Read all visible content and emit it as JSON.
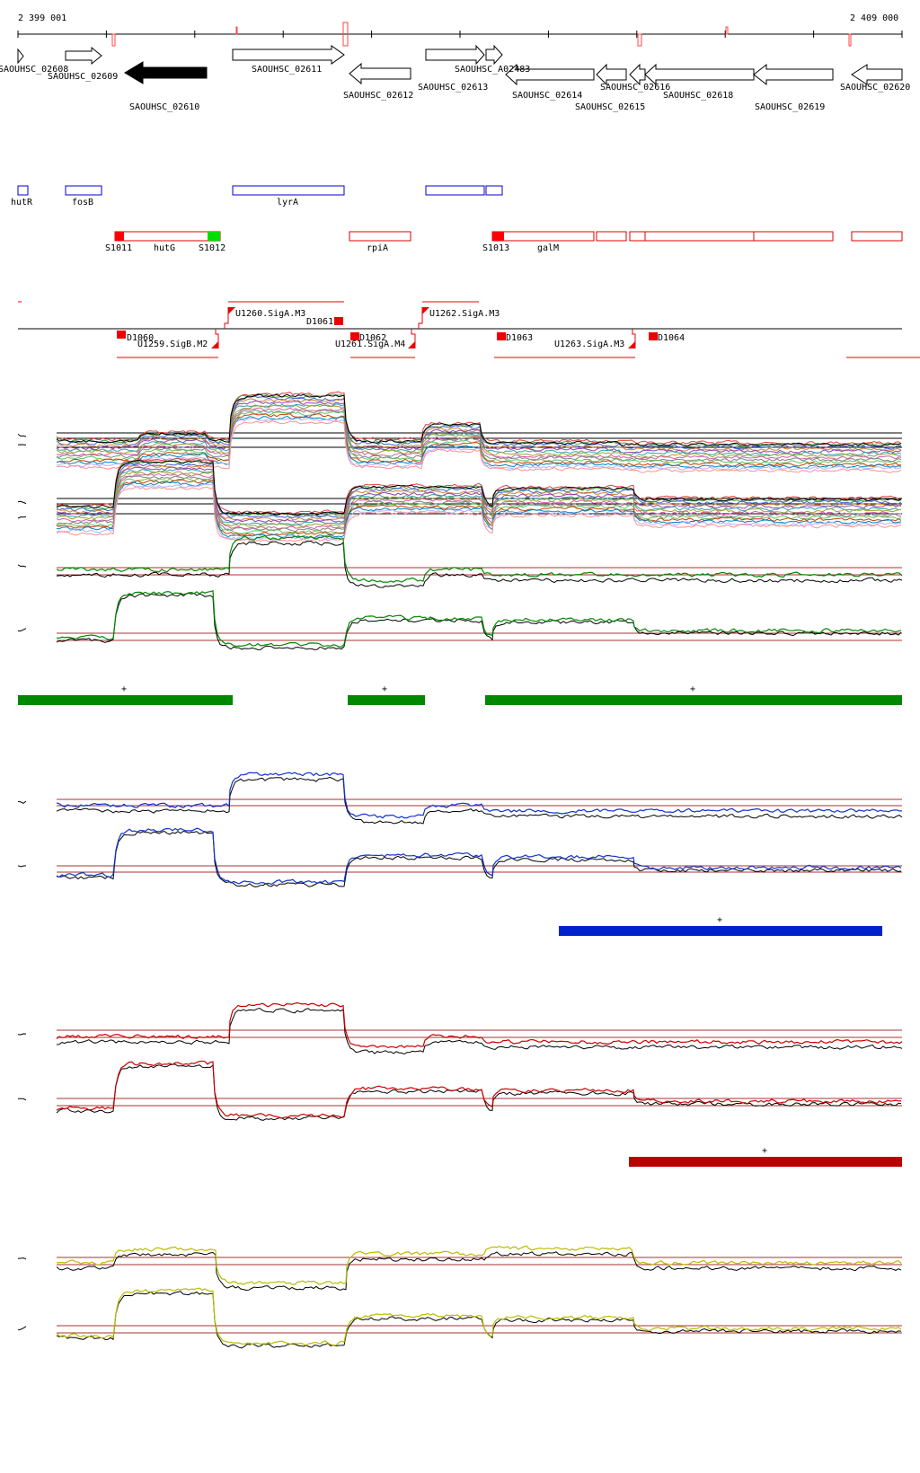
{
  "axis": {
    "start_label": "2 399 001",
    "end_label": "2 409 000",
    "start": 2399001,
    "end": 2409000
  },
  "genes": [
    {
      "label": "SAOUHSC_02608",
      "strand": "+",
      "filled": false
    },
    {
      "label": "SAOUHSC_02609",
      "strand": "+",
      "filled": false
    },
    {
      "label": "SAOUHSC_02610",
      "strand": "-",
      "filled": true
    },
    {
      "label": "SAOUHSC_02611",
      "strand": "+",
      "filled": false
    },
    {
      "label": "SAOUHSC_02612",
      "strand": "-",
      "filled": false
    },
    {
      "label": "SAOUHSC_02613",
      "strand": "+",
      "filled": false
    },
    {
      "label": "SAOUHSC_A02483",
      "strand": "+",
      "filled": false
    },
    {
      "label": "SAOUHSC_02614",
      "strand": "-",
      "filled": false
    },
    {
      "label": "SAOUHSC_02615",
      "strand": "-",
      "filled": false
    },
    {
      "label": "SAOUHSC_02616",
      "strand": "-",
      "filled": false
    },
    {
      "label": "SAOUHSC_02618",
      "strand": "-",
      "filled": false
    },
    {
      "label": "SAOUHSC_02619",
      "strand": "-",
      "filled": false
    },
    {
      "label": "SAOUHSC_02620",
      "strand": "-",
      "filled": false
    }
  ],
  "blue_features": [
    {
      "label": "hutR"
    },
    {
      "label": "fosB"
    },
    {
      "label": "lyrA"
    },
    {
      "label": ""
    },
    {
      "label": ""
    }
  ],
  "red_features": [
    {
      "label": "hutG"
    },
    {
      "label": "rpiA"
    },
    {
      "label": "galM"
    },
    {
      "label": ""
    },
    {
      "label": ""
    },
    {
      "label": ""
    }
  ],
  "feature_markers": [
    {
      "label": "S1011",
      "color": "#ff0000"
    },
    {
      "label": "S1012",
      "color": "#00dd00"
    },
    {
      "label": "S1013",
      "color": "#ff0000"
    }
  ],
  "transcripts_upper": [
    {
      "label": "U1260.SigA.M3"
    },
    {
      "label": "D1061"
    },
    {
      "label": "U1262.SigA.M3"
    }
  ],
  "transcripts_lower": [
    {
      "label": "D1060"
    },
    {
      "label": "U1259.SigB.M2"
    },
    {
      "label": "D1062"
    },
    {
      "label": "U1261.SigA.M4"
    },
    {
      "label": "D1063"
    },
    {
      "label": "U1263.SigA.M3"
    },
    {
      "label": "D1064"
    }
  ],
  "condition_groups": [
    {
      "color": "#008800",
      "segments": [
        {
          "sign": "+"
        },
        {
          "sign": "+"
        },
        {
          "sign": "+"
        }
      ]
    },
    {
      "color": "#0022cc",
      "segments": [
        {
          "sign": "+"
        }
      ]
    },
    {
      "color": "#bb0000",
      "segments": [
        {
          "sign": "+"
        }
      ]
    },
    {
      "color": "#cccc00",
      "segments": []
    }
  ],
  "colors": {
    "gene_fill": "#000000",
    "blue_feature": "#0000cc",
    "red_feature": "#dd0000",
    "threshold_line": "#aa3333"
  }
}
